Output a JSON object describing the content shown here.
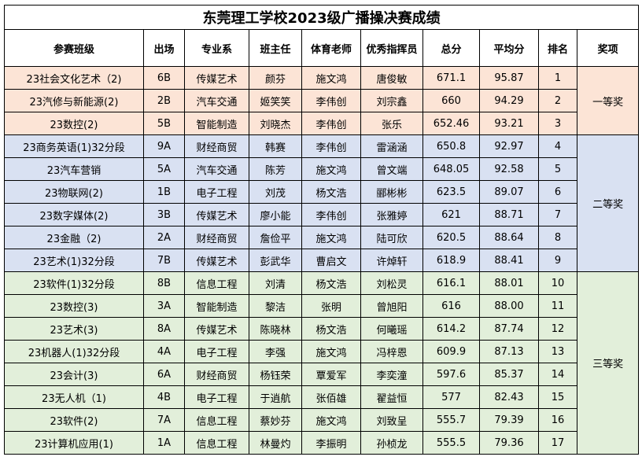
{
  "title": "东莞理工学校2023级广播操决赛成绩",
  "headers": [
    "参赛班级",
    "出场",
    "专业系",
    "班主任",
    "体育老师",
    "优秀指挥员",
    "总分",
    "平均分",
    "排名",
    "奖项"
  ],
  "rows": [
    {
      "cls": "23社会文化艺术（2)",
      "order": "6B",
      "dept": "传媒艺术",
      "teacher": "颜芬",
      "pe": "施文鸿",
      "leader": "唐俊敏",
      "total": "671.1",
      "avg": "95.87",
      "rank": "1"
    },
    {
      "cls": "23汽修与新能源(2)",
      "order": "2B",
      "dept": "汽车交通",
      "teacher": "姬笑笑",
      "pe": "李伟创",
      "leader": "刘宗鑫",
      "total": "660",
      "avg": "94.29",
      "rank": "2"
    },
    {
      "cls": "23数控(2)",
      "order": "5B",
      "dept": "智能制造",
      "teacher": "刘晓杰",
      "pe": "李伟创",
      "leader": "张乐",
      "total": "652.46",
      "avg": "93.21",
      "rank": "3"
    },
    {
      "cls": "23商务英语(1)32分段",
      "order": "9A",
      "dept": "财经商贸",
      "teacher": "韩赛",
      "pe": "李伟创",
      "leader": "雷涵涵",
      "total": "650.8",
      "avg": "92.97",
      "rank": "4"
    },
    {
      "cls": "23汽车营销",
      "order": "5A",
      "dept": "汽车交通",
      "teacher": "陈芳",
      "pe": "施文鸿",
      "leader": "曾文端",
      "total": "648.05",
      "avg": "92.58",
      "rank": "5"
    },
    {
      "cls": "23物联网(2)",
      "order": "1B",
      "dept": "电子工程",
      "teacher": "刘茂",
      "pe": "杨文浩",
      "leader": "郦彬彬",
      "total": "623.5",
      "avg": "89.07",
      "rank": "6"
    },
    {
      "cls": "23数字媒体(2)",
      "order": "3B",
      "dept": "传媒艺术",
      "teacher": "廖小能",
      "pe": "李伟创",
      "leader": "张雅婷",
      "total": "621",
      "avg": "88.71",
      "rank": "7"
    },
    {
      "cls": "23金融（2)",
      "order": "2A",
      "dept": "财经商贸",
      "teacher": "詹俭平",
      "pe": "施文鸿",
      "leader": "陆可欣",
      "total": "620.5",
      "avg": "88.64",
      "rank": "8"
    },
    {
      "cls": "23艺术(1)32分段",
      "order": "7B",
      "dept": "传媒艺术",
      "teacher": "彭武华",
      "pe": "曹启文",
      "leader": "许焯轩",
      "total": "618.9",
      "avg": "88.41",
      "rank": "9"
    },
    {
      "cls": "23软件(1)32分段",
      "order": "8B",
      "dept": "信息工程",
      "teacher": "刘清",
      "pe": "杨文浩",
      "leader": "刘松灵",
      "total": "616.1",
      "avg": "88.01",
      "rank": "10"
    },
    {
      "cls": "23数控(3)",
      "order": "3A",
      "dept": "智能制造",
      "teacher": "黎洁",
      "pe": "张明",
      "leader": "曾旭阳",
      "total": "616",
      "avg": "88.00",
      "rank": "11"
    },
    {
      "cls": "23艺术(3)",
      "order": "8A",
      "dept": "传媒艺术",
      "teacher": "陈晓林",
      "pe": "杨文浩",
      "leader": "何曦瑶",
      "total": "614.2",
      "avg": "87.74",
      "rank": "12"
    },
    {
      "cls": "23机器人(1)32分段",
      "order": "4A",
      "dept": "电子工程",
      "teacher": "李强",
      "pe": "施文鸿",
      "leader": "冯梓恩",
      "total": "609.9",
      "avg": "87.13",
      "rank": "13"
    },
    {
      "cls": "23会计(3)",
      "order": "6A",
      "dept": "财经商贸",
      "teacher": "杨钰荣",
      "pe": "覃爱军",
      "leader": "李奕潼",
      "total": "597.6",
      "avg": "85.37",
      "rank": "14"
    },
    {
      "cls": "23无人机（1)",
      "order": "4B",
      "dept": "电子工程",
      "teacher": "于逍航",
      "pe": "张佰雄",
      "leader": "翟益恒",
      "total": "577",
      "avg": "82.43",
      "rank": "15"
    },
    {
      "cls": "23软件(2)",
      "order": "7A",
      "dept": "信息工程",
      "teacher": "蔡妙芬",
      "pe": "施文鸿",
      "leader": "刘致呈",
      "total": "555.7",
      "avg": "79.39",
      "rank": "16"
    },
    {
      "cls": "23计算机应用(1)",
      "order": "1A",
      "dept": "信息工程",
      "teacher": "林曼灼",
      "pe": "李振明",
      "leader": "孙桢龙",
      "total": "555.5",
      "avg": "79.36",
      "rank": "17"
    }
  ],
  "awards": [
    {
      "label": "一等奖",
      "start": 0,
      "span": 3,
      "color": "#fce4d6"
    },
    {
      "label": "二等奖",
      "start": 3,
      "span": 6,
      "color": "#d9e1f2"
    },
    {
      "label": "三等奖",
      "start": 9,
      "span": 8,
      "color": "#e2efda"
    }
  ]
}
